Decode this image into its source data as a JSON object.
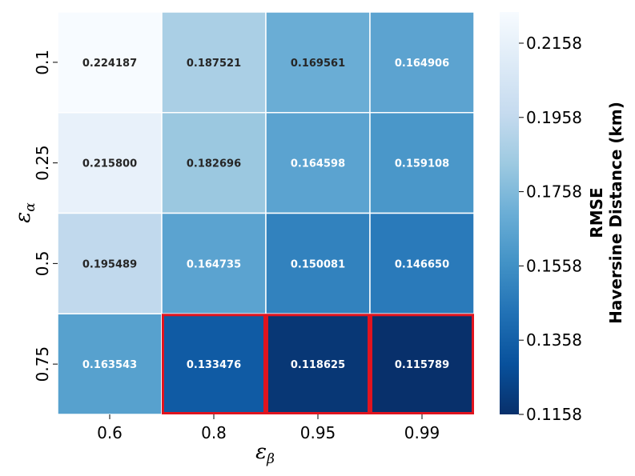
{
  "chart_data": {
    "type": "heatmap",
    "xlabel": "ε",
    "xlabel_sub": "β",
    "ylabel": "ε",
    "ylabel_sub": "α",
    "x_categories": [
      "0.6",
      "0.8",
      "0.95",
      "0.99"
    ],
    "y_categories": [
      "0.1",
      "0.25",
      "0.5",
      "0.75"
    ],
    "values": [
      [
        0.224187,
        0.187521,
        0.169561,
        0.164906
      ],
      [
        0.2158,
        0.182696,
        0.164598,
        0.159108
      ],
      [
        0.195489,
        0.164735,
        0.150081,
        0.14665
      ],
      [
        0.163543,
        0.133476,
        0.118625,
        0.115789
      ]
    ],
    "cell_labels": [
      [
        "0.224187",
        "0.187521",
        "0.169561",
        "0.164906"
      ],
      [
        "0.215800",
        "0.182696",
        "0.164598",
        "0.159108"
      ],
      [
        "0.195489",
        "0.164735",
        "0.150081",
        "0.146650"
      ],
      [
        "0.163543",
        "0.133476",
        "0.118625",
        "0.115789"
      ]
    ],
    "colormap": "Blues",
    "highlighted_cells": [
      [
        3,
        1
      ],
      [
        3,
        2
      ],
      [
        3,
        3
      ]
    ],
    "highlight_color": "#e0141f",
    "colorbar": {
      "label_line1": "RMSE",
      "label_line2": "Haversine Distance (km)",
      "range": [
        0.1158,
        0.2242
      ],
      "ticks": [
        0.2158,
        0.1958,
        0.1758,
        0.1558,
        0.1358,
        0.1158
      ],
      "tick_labels": [
        "0.2158",
        "0.1958",
        "0.1758",
        "0.1558",
        "0.1358",
        "0.1158"
      ]
    }
  }
}
